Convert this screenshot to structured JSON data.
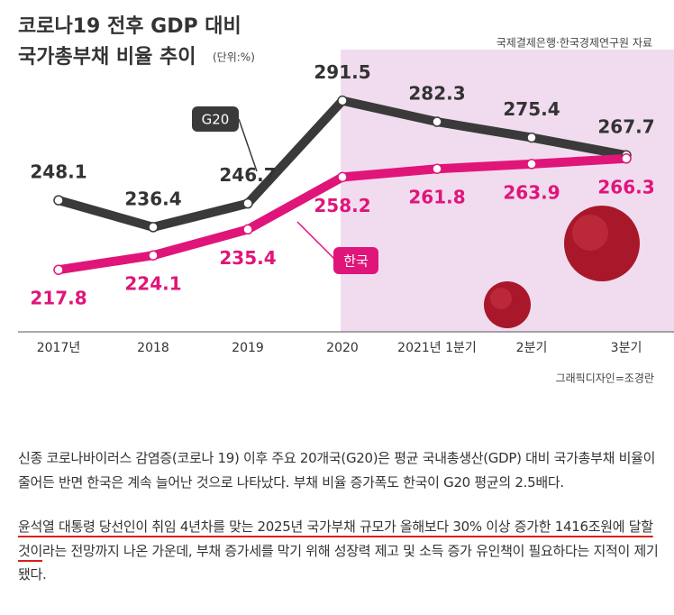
{
  "chart_data": {
    "type": "line",
    "title": [
      "코로나19 전후 GDP 대비",
      "국가총부채 비율 추이"
    ],
    "unit_note": "(단위:%)",
    "source": "국제결제은행·한국경제연구원 자료",
    "credit": "그래픽디자인=조경란",
    "categories": [
      "2017년",
      "2018",
      "2019",
      "2020",
      "2021년 1분기",
      "2분기",
      "3분기"
    ],
    "series": [
      {
        "name": "G20",
        "color": "#3a3a3a",
        "values": [
          248.1,
          236.4,
          246.7,
          291.5,
          282.3,
          275.4,
          267.7
        ]
      },
      {
        "name": "한국",
        "color": "#e0157a",
        "values": [
          217.8,
          224.1,
          235.4,
          258.2,
          261.8,
          263.9,
          266.3
        ]
      }
    ],
    "ylim": [
      190,
      300
    ]
  },
  "article": {
    "paragraph_1": "신종 코로나바이러스 감염증(코로나 19) 이후 주요 20개국(G20)은 평균 국내총생산(GDP) 대비 국가총부채 비율이 줄어든 반면 한국은 계속 늘어난 것으로 나타났다. 부채 비율 증가폭도 한국이 G20 평균의 2.5배다.",
    "paragraph_2": {
      "highlighted": "윤석열 대통령 당선인이 취임 4년차를 맞는 2025년 국가부채 규모가 올해보다 30% 이상 증가한 1416조원에 달할 것이",
      "rest": "라는 전망까지 나온 가운데, 부채 증가세를 막기 위해 성장력 제고 및 소득 증가 유인책이 필요하다는 지적이 제기됐다."
    }
  }
}
